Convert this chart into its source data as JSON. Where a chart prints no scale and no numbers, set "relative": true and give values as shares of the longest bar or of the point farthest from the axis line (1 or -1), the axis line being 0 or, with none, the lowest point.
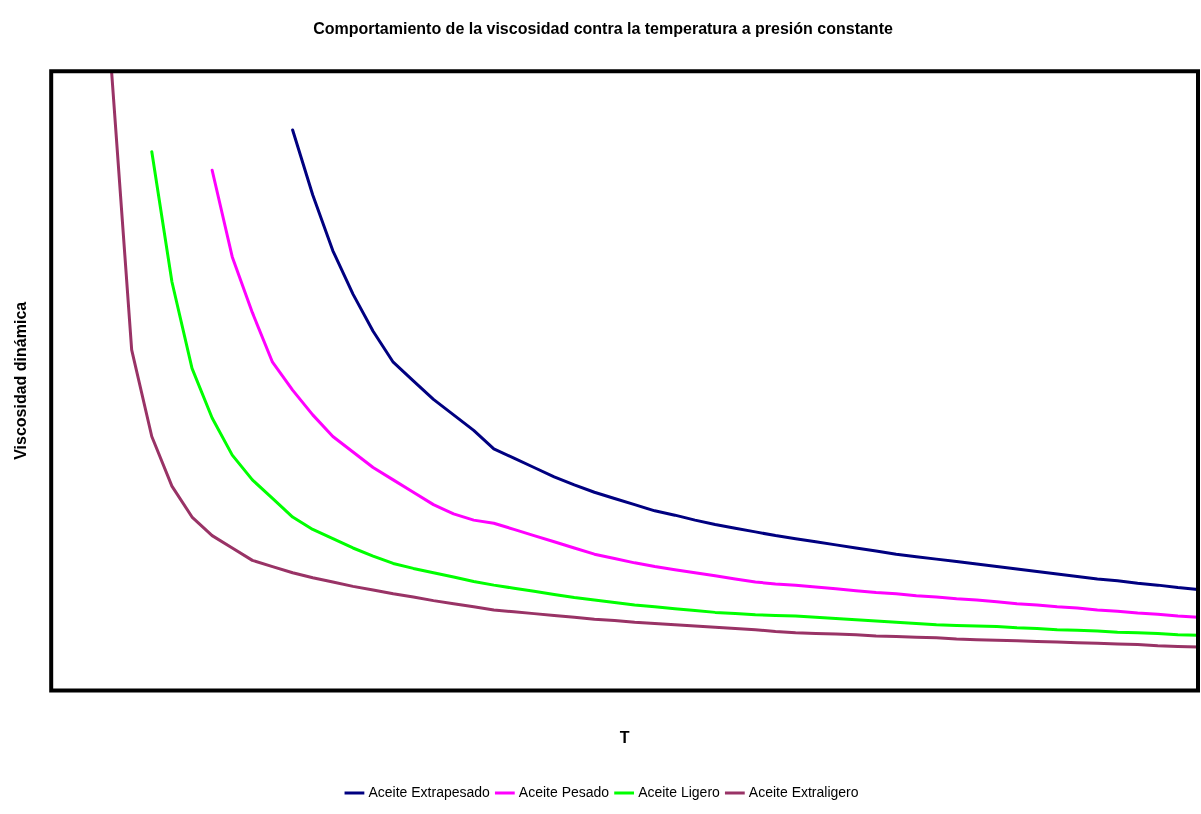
{
  "chart_data": {
    "type": "line",
    "title": "Comportamiento de la viscosidad contra la temperatura a presión constante",
    "xlabel": "T",
    "ylabel": "Viscosidad dinámica",
    "relative": true,
    "grid": false,
    "legend": "bottom",
    "marker": "none",
    "line_style": "solid",
    "categories": [
      null,
      null,
      null,
      null,
      null,
      null,
      null,
      null,
      null,
      null,
      null,
      null,
      null,
      null,
      null,
      null,
      null,
      null,
      null,
      null,
      null,
      null,
      null,
      null,
      null,
      null,
      null,
      null,
      null,
      null,
      null,
      null,
      null,
      null,
      null,
      null,
      null,
      null,
      null,
      null,
      null,
      null,
      null,
      null,
      null,
      null,
      null,
      null,
      null,
      null,
      null,
      null,
      null,
      null,
      null,
      null,
      null,
      null
    ],
    "series": [
      {
        "name": "Aceite Extrapesado",
        "color": "#000080",
        "values": [
          null,
          null,
          null,
          null,
          null,
          null,
          null,
          null,
          null,
          null,
          null,
          null,
          0.905,
          0.8,
          0.71,
          0.64,
          0.58,
          0.53,
          0.5,
          0.47,
          0.445,
          0.42,
          0.39,
          0.375,
          0.36,
          0.345,
          0.332,
          0.32,
          0.31,
          0.3,
          0.29,
          0.283,
          0.275,
          0.268,
          0.262,
          0.256,
          0.25,
          0.245,
          0.24,
          0.235,
          0.23,
          0.225,
          0.22,
          0.216,
          0.212,
          0.208,
          0.204,
          0.2,
          0.196,
          0.192,
          0.188,
          0.184,
          0.18,
          0.177,
          0.173,
          0.17,
          0.166,
          0.163
        ]
      },
      {
        "name": "Aceite Pesado",
        "color": "#ff00ff",
        "values": [
          null,
          null,
          null,
          null,
          null,
          null,
          null,
          null,
          0.84,
          0.7,
          0.61,
          0.53,
          0.485,
          0.445,
          0.41,
          0.385,
          0.36,
          0.34,
          0.32,
          0.3,
          0.285,
          0.275,
          0.27,
          0.26,
          0.25,
          0.24,
          0.23,
          0.22,
          0.213,
          0.206,
          0.2,
          0.195,
          0.19,
          0.185,
          0.18,
          0.175,
          0.172,
          0.17,
          0.167,
          0.164,
          0.161,
          0.158,
          0.156,
          0.153,
          0.151,
          0.148,
          0.146,
          0.143,
          0.14,
          0.138,
          0.135,
          0.133,
          0.13,
          0.128,
          0.125,
          0.123,
          0.12,
          0.118
        ]
      },
      {
        "name": "Aceite Ligero",
        "color": "#00ff00",
        "values": [
          null,
          null,
          null,
          null,
          null,
          0.87,
          0.66,
          0.52,
          0.44,
          0.38,
          0.34,
          0.31,
          0.28,
          0.26,
          0.245,
          0.23,
          0.217,
          0.205,
          0.197,
          0.19,
          0.183,
          0.176,
          0.17,
          0.165,
          0.16,
          0.155,
          0.15,
          0.146,
          0.142,
          0.138,
          0.135,
          0.132,
          0.129,
          0.126,
          0.124,
          0.122,
          0.121,
          0.12,
          0.118,
          0.116,
          0.114,
          0.112,
          0.11,
          0.108,
          0.106,
          0.105,
          0.104,
          0.103,
          0.101,
          0.1,
          0.098,
          0.097,
          0.096,
          0.094,
          0.093,
          0.092,
          0.09,
          0.089
        ]
      },
      {
        "name": "Aceite Extraligero",
        "color": "#993366",
        "values": [
          null,
          null,
          null,
          1.0,
          0.55,
          0.41,
          0.33,
          0.28,
          0.25,
          0.23,
          0.21,
          0.2,
          0.19,
          0.182,
          0.175,
          0.168,
          0.162,
          0.156,
          0.151,
          0.145,
          0.14,
          0.135,
          0.13,
          0.127,
          0.124,
          0.121,
          0.118,
          0.115,
          0.113,
          0.11,
          0.108,
          0.106,
          0.104,
          0.102,
          0.1,
          0.098,
          0.095,
          0.093,
          0.092,
          0.091,
          0.09,
          0.088,
          0.087,
          0.086,
          0.085,
          0.083,
          0.082,
          0.081,
          0.08,
          0.079,
          0.078,
          0.077,
          0.076,
          0.075,
          0.074,
          0.072,
          0.071,
          0.07
        ]
      }
    ]
  }
}
